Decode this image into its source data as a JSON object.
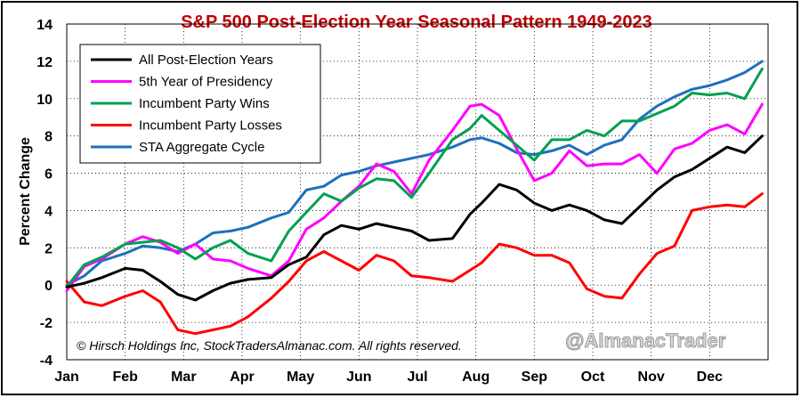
{
  "chart_data": {
    "type": "line",
    "title": "S&P 500 Post-Election Year Seasonal Pattern 1949-2023",
    "xlabel": "",
    "ylabel": "Percent Change",
    "ylim": [
      -4,
      14
    ],
    "yticks": [
      -4,
      -2,
      0,
      2,
      4,
      6,
      8,
      10,
      12,
      14
    ],
    "xlim": [
      0,
      12
    ],
    "categories": [
      "Jan",
      "Feb",
      "Mar",
      "Apr",
      "May",
      "Jun",
      "Jul",
      "Aug",
      "Sep",
      "Oct",
      "Nov",
      "Dec"
    ],
    "grid": true,
    "legend": "top-left",
    "series": [
      {
        "name": "All Post-Election Years",
        "color": "#000000",
        "x": [
          0,
          0.3,
          0.6,
          1.0,
          1.3,
          1.6,
          1.9,
          2.2,
          2.5,
          2.8,
          3.1,
          3.5,
          3.8,
          4.1,
          4.4,
          4.7,
          5.0,
          5.3,
          5.6,
          5.9,
          6.2,
          6.6,
          6.9,
          7.1,
          7.4,
          7.7,
          8.0,
          8.3,
          8.6,
          8.9,
          9.2,
          9.5,
          9.8,
          10.1,
          10.4,
          10.7,
          11.0,
          11.3,
          11.6,
          11.9
        ],
        "y": [
          -0.1,
          0.1,
          0.4,
          0.9,
          0.8,
          0.2,
          -0.5,
          -0.8,
          -0.3,
          0.1,
          0.3,
          0.4,
          1.1,
          1.5,
          2.7,
          3.2,
          3.0,
          3.3,
          3.1,
          2.9,
          2.4,
          2.5,
          3.8,
          4.4,
          5.4,
          5.1,
          4.4,
          4.0,
          4.3,
          4.0,
          3.5,
          3.3,
          4.2,
          5.1,
          5.8,
          6.2,
          6.8,
          7.4,
          7.1,
          8.0
        ]
      },
      {
        "name": "5th Year of Presidency",
        "color": "#ff00ff",
        "x": [
          0,
          0.3,
          0.6,
          1.0,
          1.3,
          1.6,
          1.9,
          2.2,
          2.5,
          2.8,
          3.1,
          3.5,
          3.8,
          4.1,
          4.4,
          4.7,
          5.0,
          5.3,
          5.6,
          5.9,
          6.2,
          6.6,
          6.9,
          7.1,
          7.4,
          7.7,
          8.0,
          8.3,
          8.6,
          8.9,
          9.2,
          9.5,
          9.8,
          10.1,
          10.4,
          10.7,
          11.0,
          11.3,
          11.6,
          11.9
        ],
        "y": [
          -0.3,
          1.0,
          1.4,
          2.2,
          2.6,
          2.3,
          1.7,
          2.2,
          1.4,
          1.3,
          0.9,
          0.5,
          1.3,
          3.0,
          3.6,
          4.5,
          5.3,
          6.5,
          6.1,
          4.9,
          6.7,
          8.3,
          9.6,
          9.7,
          9.1,
          7.3,
          5.6,
          6.0,
          7.2,
          6.4,
          6.5,
          6.5,
          7.0,
          6.0,
          7.3,
          7.6,
          8.3,
          8.6,
          8.1,
          9.7
        ]
      },
      {
        "name": "Incumbent Party Wins",
        "color": "#00a050",
        "x": [
          0,
          0.3,
          0.6,
          1.0,
          1.3,
          1.6,
          1.9,
          2.2,
          2.5,
          2.8,
          3.1,
          3.5,
          3.8,
          4.1,
          4.4,
          4.7,
          5.0,
          5.3,
          5.6,
          5.9,
          6.2,
          6.6,
          6.9,
          7.1,
          7.4,
          7.7,
          8.0,
          8.3,
          8.6,
          8.9,
          9.2,
          9.5,
          9.8,
          10.1,
          10.4,
          10.7,
          11.0,
          11.3,
          11.6,
          11.9
        ],
        "y": [
          -0.1,
          1.1,
          1.5,
          2.2,
          2.3,
          2.4,
          2.0,
          1.4,
          2.0,
          2.4,
          1.7,
          1.3,
          2.9,
          3.9,
          4.9,
          4.5,
          5.2,
          5.7,
          5.6,
          4.7,
          6.0,
          7.8,
          8.4,
          9.1,
          8.3,
          7.5,
          6.7,
          7.8,
          7.8,
          8.3,
          8.0,
          8.8,
          8.8,
          9.2,
          9.6,
          10.3,
          10.2,
          10.3,
          10.0,
          11.6
        ]
      },
      {
        "name": "Incumbent Party Losses",
        "color": "#ff0000",
        "x": [
          0,
          0.3,
          0.6,
          1.0,
          1.3,
          1.6,
          1.9,
          2.2,
          2.5,
          2.8,
          3.1,
          3.5,
          3.8,
          4.1,
          4.4,
          4.7,
          5.0,
          5.3,
          5.6,
          5.9,
          6.2,
          6.6,
          6.9,
          7.1,
          7.4,
          7.7,
          8.0,
          8.3,
          8.6,
          8.9,
          9.2,
          9.5,
          9.8,
          10.1,
          10.4,
          10.7,
          11.0,
          11.3,
          11.6,
          11.9
        ],
        "y": [
          0.2,
          -0.9,
          -1.1,
          -0.6,
          -0.3,
          -0.9,
          -2.4,
          -2.6,
          -2.4,
          -2.2,
          -1.7,
          -0.7,
          0.2,
          1.3,
          1.8,
          1.3,
          0.8,
          1.6,
          1.3,
          0.5,
          0.4,
          0.2,
          0.8,
          1.2,
          2.2,
          2.0,
          1.6,
          1.6,
          1.2,
          -0.2,
          -0.6,
          -0.7,
          0.6,
          1.7,
          2.1,
          4.0,
          4.2,
          4.3,
          4.2,
          4.9
        ]
      },
      {
        "name": "STA Aggregate Cycle",
        "color": "#1f6fbf",
        "x": [
          0,
          0.3,
          0.6,
          1.0,
          1.3,
          1.6,
          1.9,
          2.2,
          2.5,
          2.8,
          3.1,
          3.5,
          3.8,
          4.1,
          4.4,
          4.7,
          5.0,
          5.3,
          5.6,
          5.9,
          6.2,
          6.6,
          6.9,
          7.1,
          7.4,
          7.7,
          8.0,
          8.3,
          8.6,
          8.9,
          9.2,
          9.5,
          9.8,
          10.1,
          10.4,
          10.7,
          11.0,
          11.3,
          11.6,
          11.9
        ],
        "y": [
          0.0,
          0.5,
          1.3,
          1.7,
          2.1,
          2.0,
          1.8,
          2.2,
          2.8,
          2.9,
          3.1,
          3.6,
          3.9,
          5.1,
          5.3,
          5.9,
          6.1,
          6.4,
          6.6,
          6.8,
          7.0,
          7.4,
          7.8,
          7.9,
          7.6,
          7.1,
          7.0,
          7.2,
          7.5,
          7.0,
          7.5,
          7.8,
          8.9,
          9.6,
          10.1,
          10.5,
          10.7,
          11.0,
          11.4,
          12.0
        ]
      }
    ]
  },
  "credit": "© Hirsch Holdings Inc, StockTradersAlmanac.com. All rights reserved.",
  "watermark": "@AlmanacTrader"
}
